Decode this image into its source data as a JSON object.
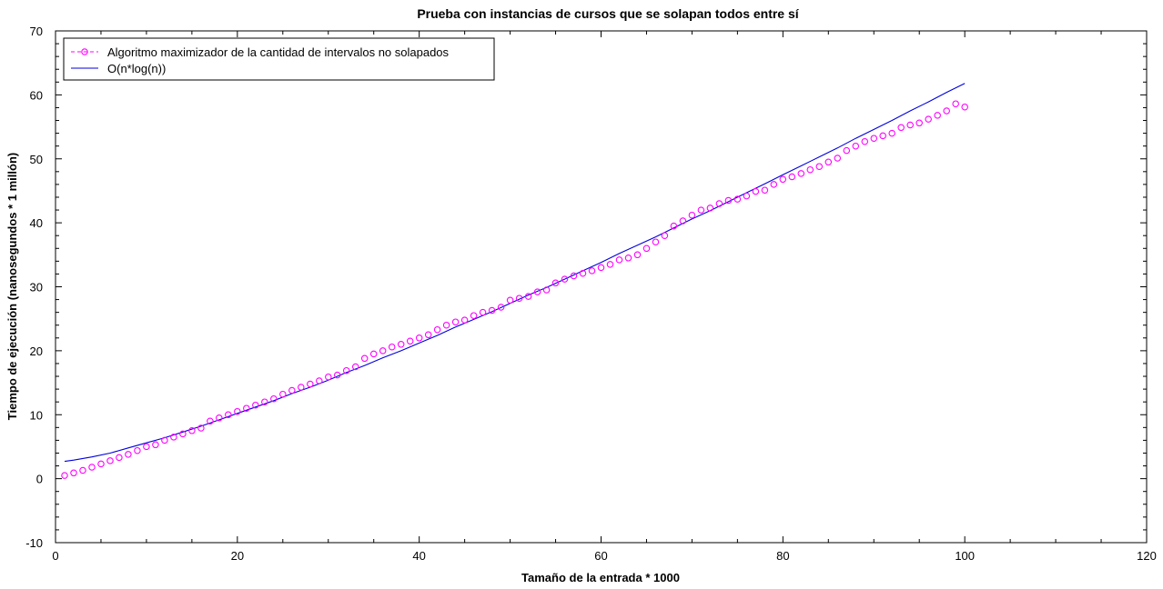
{
  "chart_data": {
    "type": "line",
    "title": "Prueba con instancias de cursos que se solapan todos entre sí",
    "xlabel": "Tamaño de la entrada * 1000",
    "ylabel": "Tiempo de ejecución (nanosegundos * 1 millón)",
    "xlim": [
      0,
      120
    ],
    "ylim": [
      -10,
      70
    ],
    "xticks": [
      0,
      20,
      40,
      60,
      80,
      100,
      120
    ],
    "yticks": [
      -10,
      0,
      10,
      20,
      30,
      40,
      50,
      60,
      70
    ],
    "grid": false,
    "legend_position": "top-left",
    "series": [
      {
        "name": "Algoritmo maximizador de la cantidad de intervalos no solapados",
        "style": "dashed-line-circle-markers",
        "color": "#ff00ff",
        "x": [
          1,
          2,
          3,
          4,
          5,
          6,
          7,
          8,
          9,
          10,
          11,
          12,
          13,
          14,
          15,
          16,
          17,
          18,
          19,
          20,
          21,
          22,
          23,
          24,
          25,
          26,
          27,
          28,
          29,
          30,
          31,
          32,
          33,
          34,
          35,
          36,
          37,
          38,
          39,
          40,
          41,
          42,
          43,
          44,
          45,
          46,
          47,
          48,
          49,
          50,
          51,
          52,
          53,
          54,
          55,
          56,
          57,
          58,
          59,
          60,
          61,
          62,
          63,
          64,
          65,
          66,
          67,
          68,
          69,
          70,
          71,
          72,
          73,
          74,
          75,
          76,
          77,
          78,
          79,
          80,
          81,
          82,
          83,
          84,
          85,
          86,
          87,
          88,
          89,
          90,
          91,
          92,
          93,
          94,
          95,
          96,
          97,
          98,
          99,
          100
        ],
        "y": [
          0.5,
          0.9,
          1.3,
          1.8,
          2.3,
          2.8,
          3.3,
          3.8,
          4.4,
          5.0,
          5.3,
          6.0,
          6.5,
          7.0,
          7.5,
          7.9,
          9.0,
          9.5,
          10.0,
          10.5,
          11.0,
          11.5,
          12.0,
          12.5,
          13.2,
          13.8,
          14.3,
          14.8,
          15.3,
          15.9,
          16.2,
          16.9,
          17.5,
          18.8,
          19.5,
          20.0,
          20.6,
          21.0,
          21.5,
          22.0,
          22.5,
          23.3,
          24.0,
          24.5,
          24.8,
          25.5,
          26.0,
          26.3,
          26.8,
          27.9,
          28.2,
          28.5,
          29.2,
          29.5,
          30.6,
          31.2,
          31.7,
          32.1,
          32.5,
          33.0,
          33.5,
          34.2,
          34.5,
          35.0,
          36.0,
          37.0,
          38.0,
          39.5,
          40.3,
          41.2,
          42.0,
          42.3,
          43.0,
          43.5,
          43.7,
          44.2,
          44.9,
          45.1,
          46.0,
          46.8,
          47.2,
          47.7,
          48.3,
          48.8,
          49.5,
          50.1,
          51.3,
          52.0,
          52.7,
          53.2,
          53.6,
          54.0,
          54.9,
          55.3,
          55.6,
          56.2,
          56.8,
          57.5,
          58.6,
          58.1
        ]
      },
      {
        "name": "O(n*log(n))",
        "style": "solid-line",
        "color": "#0000dd",
        "x": [
          1,
          2,
          4,
          6,
          8,
          10,
          12,
          14,
          16,
          18,
          20,
          22,
          24,
          26,
          28,
          30,
          32,
          34,
          36,
          38,
          40,
          42,
          44,
          46,
          48,
          50,
          52,
          54,
          56,
          58,
          60,
          62,
          64,
          66,
          68,
          70,
          72,
          74,
          76,
          78,
          80,
          82,
          84,
          86,
          88,
          90,
          92,
          94,
          96,
          98,
          100
        ],
        "y": [
          2.7,
          2.9,
          3.4,
          4.0,
          4.8,
          5.6,
          6.4,
          7.3,
          8.2,
          9.2,
          10.2,
          11.2,
          12.2,
          13.3,
          14.3,
          15.4,
          16.6,
          17.7,
          18.9,
          20.0,
          21.2,
          22.4,
          23.7,
          24.9,
          26.1,
          27.4,
          28.7,
          29.9,
          31.2,
          32.5,
          33.8,
          35.2,
          36.5,
          37.8,
          39.2,
          40.6,
          41.9,
          43.3,
          44.7,
          46.1,
          47.5,
          48.9,
          50.3,
          51.7,
          53.2,
          54.6,
          56.0,
          57.5,
          58.9,
          60.4,
          61.8
        ]
      }
    ]
  }
}
